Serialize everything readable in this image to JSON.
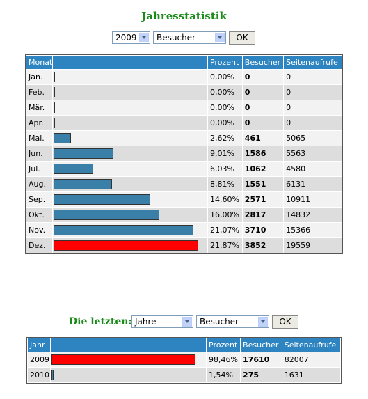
{
  "header": {
    "title": "Jahresstatistik",
    "year_select": "2009",
    "metric_select": "Besucher",
    "button": "OK"
  },
  "monthly_table": {
    "columns": [
      "Monat",
      "Prozent",
      "Besucher",
      "Seitenaufrufe"
    ],
    "rows": [
      {
        "label": "Jan.",
        "percent": 0,
        "percent_label": "0,00%",
        "visitors": 0,
        "pageviews": 0
      },
      {
        "label": "Feb.",
        "percent": 0,
        "percent_label": "0,00%",
        "visitors": 0,
        "pageviews": 0
      },
      {
        "label": "Mär.",
        "percent": 0,
        "percent_label": "0,00%",
        "visitors": 0,
        "pageviews": 0
      },
      {
        "label": "Apr.",
        "percent": 0,
        "percent_label": "0,00%",
        "visitors": 0,
        "pageviews": 0
      },
      {
        "label": "Mai.",
        "percent": 2.62,
        "percent_label": "2,62%",
        "visitors": 461,
        "pageviews": 5065
      },
      {
        "label": "Jun.",
        "percent": 9.01,
        "percent_label": "9,01%",
        "visitors": 1586,
        "pageviews": 5563
      },
      {
        "label": "Jul.",
        "percent": 6.03,
        "percent_label": "6,03%",
        "visitors": 1062,
        "pageviews": 4580
      },
      {
        "label": "Aug.",
        "percent": 8.81,
        "percent_label": "8,81%",
        "visitors": 1551,
        "pageviews": 6131
      },
      {
        "label": "Sep.",
        "percent": 14.6,
        "percent_label": "14,60%",
        "visitors": 2571,
        "pageviews": 10911
      },
      {
        "label": "Okt.",
        "percent": 16,
        "percent_label": "16,00%",
        "visitors": 2817,
        "pageviews": 14832
      },
      {
        "label": "Nov.",
        "percent": 21.07,
        "percent_label": "21,07%",
        "visitors": 3710,
        "pageviews": 15366
      },
      {
        "label": "Dez.",
        "percent": 21.87,
        "percent_label": "21,87%",
        "visitors": 3852,
        "pageviews": 19559
      }
    ]
  },
  "recent": {
    "label": "Die letzten:",
    "range_select": "Jahre",
    "metric_select": "Besucher",
    "button": "OK"
  },
  "yearly_table": {
    "columns": [
      "Jahr",
      "Prozent",
      "Besucher",
      "Seitenaufrufe"
    ],
    "rows": [
      {
        "label": "2009",
        "percent": 98.46,
        "percent_label": "98,46%",
        "visitors": 17610,
        "pageviews": 82007
      },
      {
        "label": "2010",
        "percent": 1.54,
        "percent_label": "1,54%",
        "visitors": 275,
        "pageviews": 1631
      }
    ]
  },
  "bar_color": "#3a7fa8",
  "highlight_color": "#ff0000"
}
